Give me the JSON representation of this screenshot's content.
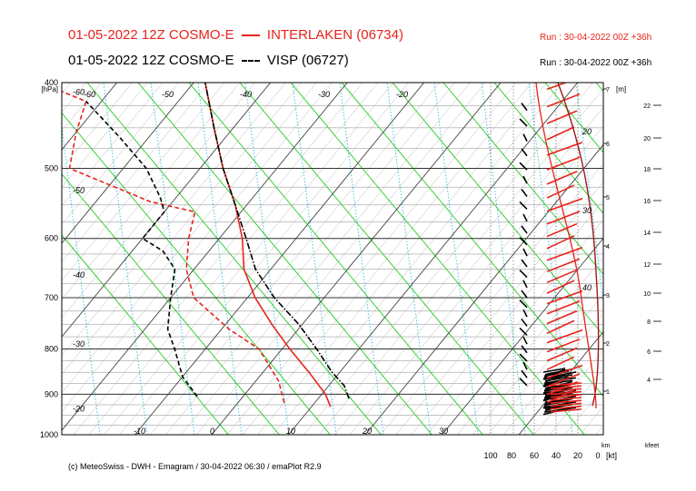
{
  "header": {
    "line1_left": "01-05-2022 12Z COSMO-E",
    "line1_right": "INTERLAKEN (06734)",
    "line1_run": "Run : 30-04-2022 00Z +36h",
    "line2_left": "01-05-2022 12Z COSMO-E",
    "line2_right": "VISP (06727)",
    "line2_run": "Run : 30-04-2022 00Z +36h"
  },
  "footer": "(c) MeteoSwiss - DWH - Emagram / 30-04-2022 06:30 / emaPlot R2.9",
  "colors": {
    "red": "#e8231b",
    "black": "#000000",
    "isotherm": "#7a7a7a",
    "dry_adiabat": "#22cc22",
    "mixing_ratio": "#33bbdd",
    "axis": "#444444"
  },
  "chart_data": {
    "type": "line",
    "title": "Emagram",
    "ylabel": "[hPa]",
    "ylim": [
      1000,
      400
    ],
    "y_scale": "log-pressure",
    "pressure_ticks": [
      "400",
      "500",
      "600",
      "700",
      "800",
      "900",
      "1000"
    ],
    "temperature_ticks": [
      "-60",
      "-50",
      "-40",
      "-30",
      "-20",
      "-10",
      "0",
      "10",
      "20",
      "30"
    ],
    "isotherm_top_labels": [
      "-60",
      "-50",
      "-40",
      "-30",
      "-20"
    ],
    "isotherm_left_labels": [
      "-60",
      "-50",
      "-40",
      "-30",
      "-20"
    ],
    "isotherm_bottom_labels": [
      "-10",
      "0",
      "10",
      "20",
      "30"
    ],
    "height_m_label": "[m]",
    "height_m_ticks": [
      "7",
      "6",
      "5",
      "4",
      "3",
      "2",
      "1"
    ],
    "km_label": "km",
    "kfeet_label": "kfeet",
    "kfeet_ticks": [
      "22",
      "20",
      "18",
      "16",
      "14",
      "12",
      "10",
      "8",
      "6",
      "4"
    ],
    "temp_scale_labels": [
      "20",
      "30",
      "40"
    ],
    "wind_speed_label": "[kt]",
    "wind_speed_ticks": [
      "100",
      "80",
      "60",
      "40",
      "20",
      "0"
    ],
    "series": [
      {
        "name": "INTERLAKEN (06734)",
        "color": "#e8231b",
        "style": "solid",
        "variable": "temperature",
        "pressure": [
          930,
          900,
          850,
          800,
          750,
          700,
          650,
          600,
          550,
          500,
          450,
          400
        ],
        "values": [
          12.5,
          10.5,
          6.0,
          1.0,
          -4.0,
          -9.0,
          -13.5,
          -17.0,
          -21.5,
          -27.0,
          -32.5,
          -38.5
        ]
      },
      {
        "name": "INTERLAKEN (06734)",
        "color": "#e8231b",
        "style": "dashed",
        "variable": "dewpoint",
        "pressure": [
          920,
          870,
          800,
          760,
          700,
          650,
          600,
          560,
          545,
          500,
          455,
          420,
          400
        ],
        "values": [
          6.0,
          3.0,
          -3.0,
          -9.0,
          -17.0,
          -21.0,
          -24.0,
          -26.0,
          -33.0,
          -47.0,
          -50.0,
          -52.0,
          -60.0
        ]
      },
      {
        "name": "VISP (06727)",
        "color": "#000000",
        "style": "dashdot",
        "variable": "temperature",
        "pressure": [
          910,
          880,
          850,
          800,
          750,
          700,
          650,
          600,
          550,
          500,
          450,
          400
        ],
        "values": [
          14.0,
          12.0,
          9.0,
          4.5,
          -0.5,
          -6.5,
          -12.0,
          -16.5,
          -21.5,
          -27.0,
          -32.5,
          -38.5
        ]
      },
      {
        "name": "VISP (06727)",
        "color": "#000000",
        "style": "dashed",
        "variable": "dewpoint",
        "pressure": [
          905,
          860,
          800,
          760,
          700,
          650,
          620,
          600,
          560,
          540,
          500,
          460,
          420
        ],
        "values": [
          -6.0,
          -10.0,
          -14.0,
          -17.0,
          -20.0,
          -22.5,
          -26.0,
          -30.0,
          -30.0,
          -32.0,
          -37.0,
          -44.0,
          -52.0
        ]
      }
    ]
  }
}
